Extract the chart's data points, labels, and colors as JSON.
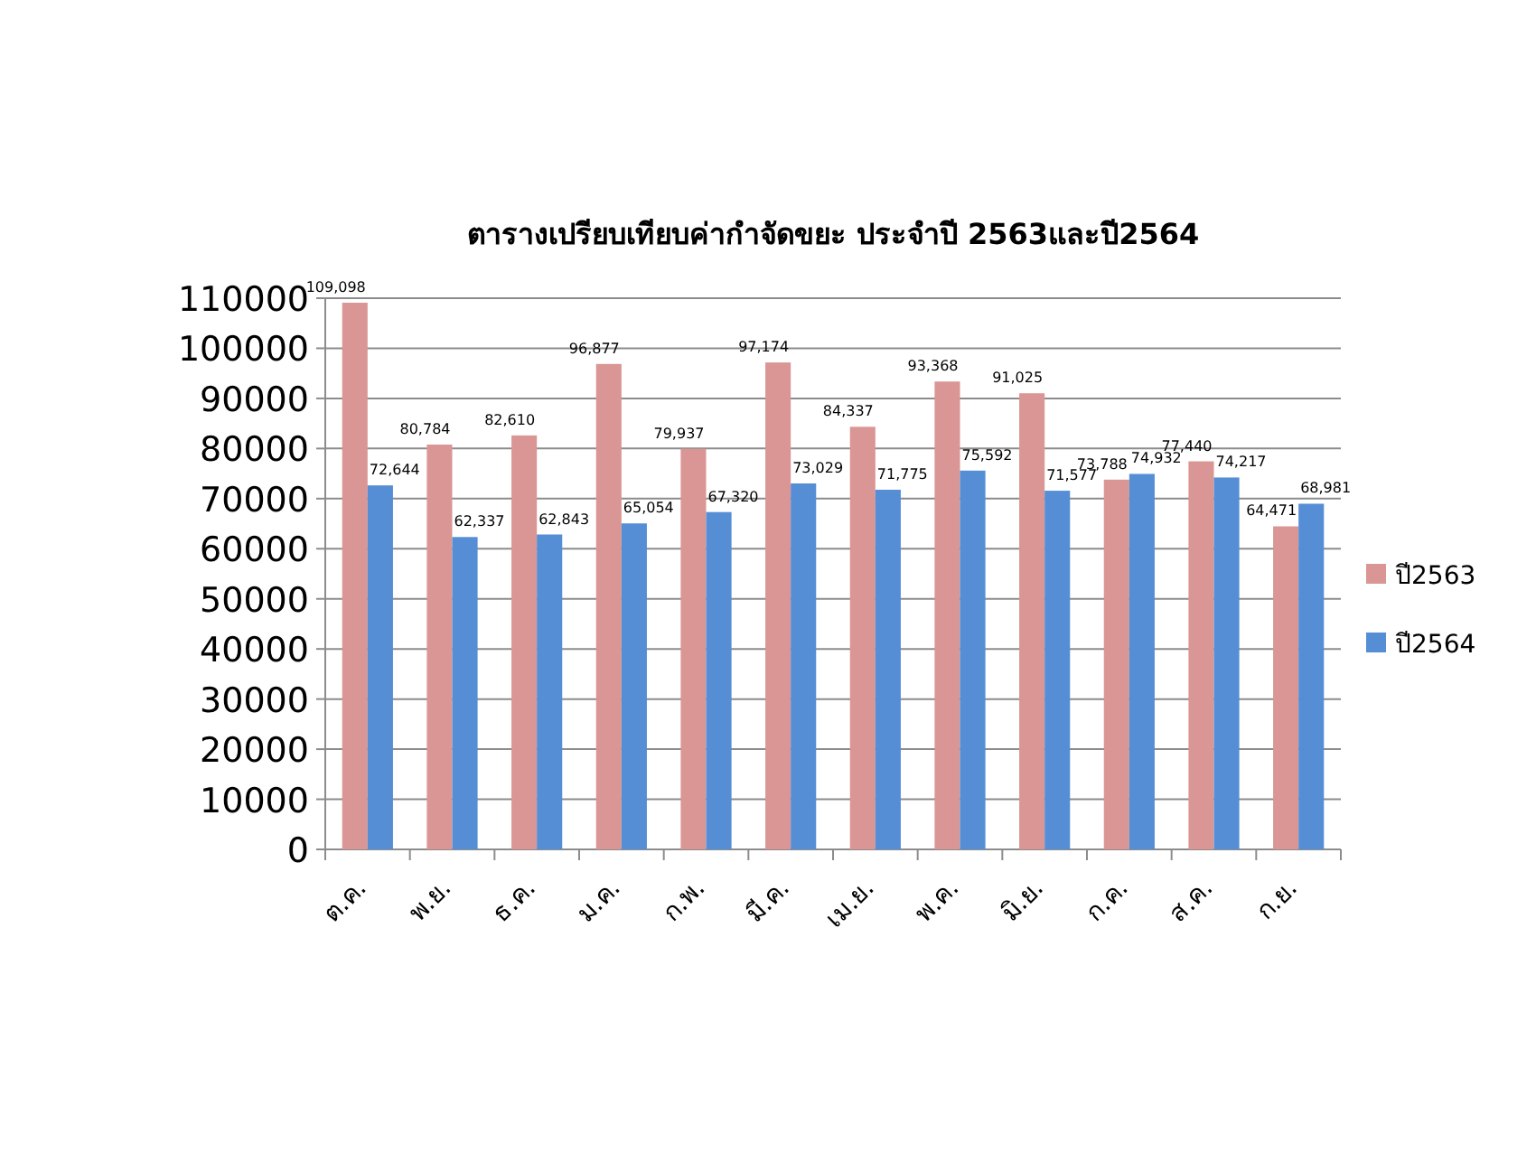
{
  "chart_data": {
    "type": "bar",
    "title": "ตารางเปรียบเทียบค่ากำจัดขยะ ประจำปี 2563และปี2564",
    "categories": [
      "ต.ค.",
      "พ.ย.",
      "ธ.ค.",
      "ม.ค.",
      "ก.พ.",
      "มี.ค.",
      "เม.ย.",
      "พ.ค.",
      "มิ.ย.",
      "ก.ค.",
      "ส.ค.",
      "ก.ย."
    ],
    "series": [
      {
        "name": "ปี2563",
        "color": "#d99694",
        "values": [
          109098,
          80784,
          82610,
          96877,
          79937,
          97174,
          84337,
          93368,
          91025,
          73788,
          77440,
          64471
        ],
        "value_labels": [
          "109,098",
          "80,784",
          "82,610",
          "96,877",
          "79,937",
          "97,174",
          "84,337",
          "93,368",
          "91,025",
          "73,788",
          "77,440",
          "64,471"
        ]
      },
      {
        "name": "ปี2564",
        "color": "#558ed5",
        "values": [
          72644,
          62337,
          62843,
          65054,
          67320,
          73029,
          71775,
          75592,
          71577,
          74932,
          74217,
          68981
        ],
        "value_labels": [
          "72,644",
          "62,337",
          "62,843",
          "65,054",
          "67,320",
          "73,029",
          "71,775",
          "75,592",
          "71,577",
          "74,932",
          "74,217",
          "68,981"
        ]
      }
    ],
    "ylim": [
      0,
      110000
    ],
    "yticks": [
      0,
      10000,
      20000,
      30000,
      40000,
      50000,
      60000,
      70000,
      80000,
      90000,
      100000,
      110000
    ],
    "grid": "y",
    "legend": "right"
  }
}
